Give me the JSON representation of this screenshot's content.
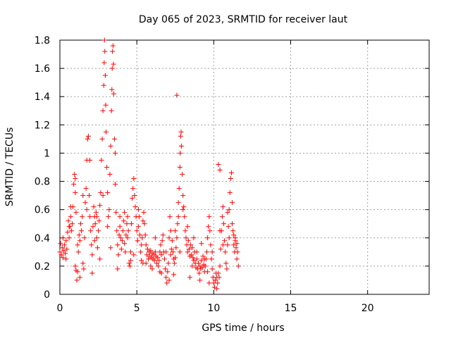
{
  "chart_data": {
    "type": "scatter",
    "title": "Day 065 of 2023, SRMTID for receiver laut",
    "xlabel": "GPS time / hours",
    "ylabel": "SRMTID / TECUs",
    "xlim": [
      0,
      24
    ],
    "ylim": [
      0,
      1.8
    ],
    "xticks": [
      0,
      5,
      10,
      15,
      20
    ],
    "xtick_labels": [
      "0",
      "5",
      "10",
      "15",
      "20"
    ],
    "yticks": [
      0,
      0.2,
      0.4,
      0.6,
      0.8,
      1.0,
      1.2,
      1.4,
      1.6,
      1.8
    ],
    "ytick_labels": [
      "0",
      "0.2",
      "0.4",
      "0.6",
      "0.8",
      "1",
      "1.2",
      "1.4",
      "1.6",
      "1.8"
    ],
    "grid": true,
    "marker": "plus",
    "color": "#ff0000",
    "series": [
      {
        "name": "laut",
        "points": [
          [
            0.0,
            0.3
          ],
          [
            0.05,
            0.36
          ],
          [
            0.1,
            0.28
          ],
          [
            0.15,
            0.33
          ],
          [
            0.2,
            0.26
          ],
          [
            0.25,
            0.31
          ],
          [
            0.3,
            0.35
          ],
          [
            0.35,
            0.29
          ],
          [
            0.4,
            0.38
          ],
          [
            0.45,
            0.32
          ],
          [
            0.5,
            0.44
          ],
          [
            0.55,
            0.52
          ],
          [
            0.6,
            0.4
          ],
          [
            0.65,
            0.48
          ],
          [
            0.7,
            0.55
          ],
          [
            0.75,
            0.45
          ],
          [
            0.8,
            0.5
          ],
          [
            0.85,
            0.62
          ],
          [
            0.9,
            0.78
          ],
          [
            0.95,
            0.85
          ],
          [
            1.0,
            0.72
          ],
          [
            1.05,
            0.58
          ],
          [
            1.0,
            0.2
          ],
          [
            1.05,
            0.17
          ],
          [
            1.1,
            0.1
          ],
          [
            1.15,
            0.16
          ],
          [
            1.2,
            0.3
          ],
          [
            1.25,
            0.42
          ],
          [
            1.3,
            0.38
          ],
          [
            1.35,
            0.5
          ],
          [
            1.4,
            0.45
          ],
          [
            1.45,
            0.55
          ],
          [
            1.5,
            0.22
          ],
          [
            1.55,
            0.18
          ],
          [
            1.6,
            0.4
          ],
          [
            1.65,
            0.65
          ],
          [
            1.7,
            0.75
          ],
          [
            1.75,
            0.95
          ],
          [
            1.8,
            1.1
          ],
          [
            1.85,
            1.12
          ],
          [
            1.9,
            0.7
          ],
          [
            1.95,
            0.55
          ],
          [
            2.0,
            0.45
          ],
          [
            2.05,
            0.35
          ],
          [
            2.1,
            0.28
          ],
          [
            2.15,
            0.48
          ],
          [
            2.2,
            0.62
          ],
          [
            2.25,
            0.55
          ],
          [
            2.3,
            0.5
          ],
          [
            2.35,
            0.58
          ],
          [
            2.4,
            0.4
          ],
          [
            2.45,
            0.33
          ],
          [
            2.5,
            0.45
          ],
          [
            2.55,
            0.52
          ],
          [
            2.6,
            0.63
          ],
          [
            2.65,
            0.72
          ],
          [
            2.7,
            0.95
          ],
          [
            2.75,
            1.1
          ],
          [
            2.8,
            1.3
          ],
          [
            2.85,
            1.48
          ],
          [
            2.88,
            1.64
          ],
          [
            2.9,
            1.8
          ],
          [
            2.92,
            1.72
          ],
          [
            2.95,
            1.55
          ],
          [
            2.98,
            1.34
          ],
          [
            3.0,
            1.15
          ],
          [
            3.05,
            0.9
          ],
          [
            3.1,
            0.72
          ],
          [
            3.15,
            0.55
          ],
          [
            3.2,
            0.6
          ],
          [
            3.25,
            0.85
          ],
          [
            3.3,
            1.05
          ],
          [
            3.35,
            1.3
          ],
          [
            3.38,
            1.45
          ],
          [
            3.4,
            1.6
          ],
          [
            3.42,
            1.72
          ],
          [
            3.45,
            1.76
          ],
          [
            3.48,
            1.63
          ],
          [
            3.5,
            1.42
          ],
          [
            3.55,
            1.1
          ],
          [
            3.6,
            0.78
          ],
          [
            3.65,
            0.58
          ],
          [
            3.7,
            0.45
          ],
          [
            3.75,
            0.35
          ],
          [
            3.8,
            0.28
          ],
          [
            3.85,
            0.42
          ],
          [
            3.9,
            0.48
          ],
          [
            3.95,
            0.4
          ],
          [
            4.0,
            0.32
          ],
          [
            4.05,
            0.38
          ],
          [
            4.1,
            0.45
          ],
          [
            4.15,
            0.52
          ],
          [
            4.2,
            0.36
          ],
          [
            4.25,
            0.3
          ],
          [
            4.3,
            0.42
          ],
          [
            4.35,
            0.5
          ],
          [
            4.4,
            0.55
          ],
          [
            4.45,
            0.45
          ],
          [
            4.5,
            0.22
          ],
          [
            4.55,
            0.2
          ],
          [
            4.6,
            0.24
          ],
          [
            4.65,
            0.5
          ],
          [
            4.7,
            0.68
          ],
          [
            4.75,
            0.75
          ],
          [
            4.8,
            0.82
          ],
          [
            4.85,
            0.7
          ],
          [
            4.9,
            0.62
          ],
          [
            4.95,
            0.55
          ],
          [
            5.0,
            0.45
          ],
          [
            5.05,
            0.38
          ],
          [
            5.1,
            0.48
          ],
          [
            5.15,
            0.55
          ],
          [
            5.2,
            0.42
          ],
          [
            5.25,
            0.3
          ],
          [
            5.3,
            0.24
          ],
          [
            5.35,
            0.4
          ],
          [
            5.4,
            0.52
          ],
          [
            5.45,
            0.58
          ],
          [
            5.5,
            0.5
          ],
          [
            5.55,
            0.42
          ],
          [
            5.6,
            0.35
          ],
          [
            5.65,
            0.28
          ],
          [
            5.7,
            0.32
          ],
          [
            5.75,
            0.25
          ],
          [
            5.8,
            0.3
          ],
          [
            5.85,
            0.27
          ],
          [
            5.9,
            0.31
          ],
          [
            5.95,
            0.26
          ],
          [
            6.0,
            0.29
          ],
          [
            6.05,
            0.25
          ],
          [
            6.1,
            0.28
          ],
          [
            6.15,
            0.24
          ],
          [
            6.2,
            0.3
          ],
          [
            6.25,
            0.27
          ],
          [
            6.3,
            0.22
          ],
          [
            6.35,
            0.26
          ],
          [
            6.4,
            0.2
          ],
          [
            6.45,
            0.24
          ],
          [
            6.5,
            0.3
          ],
          [
            6.55,
            0.35
          ],
          [
            6.6,
            0.28
          ],
          [
            6.65,
            0.38
          ],
          [
            6.7,
            0.42
          ],
          [
            6.75,
            0.3
          ],
          [
            6.8,
            0.25
          ],
          [
            6.85,
            0.18
          ],
          [
            6.9,
            0.12
          ],
          [
            6.95,
            0.08
          ],
          [
            7.0,
            0.16
          ],
          [
            7.05,
            0.22
          ],
          [
            7.1,
            0.4
          ],
          [
            7.15,
            0.55
          ],
          [
            7.2,
            0.45
          ],
          [
            7.25,
            0.32
          ],
          [
            7.3,
            0.38
          ],
          [
            7.35,
            0.3
          ],
          [
            7.4,
            0.25
          ],
          [
            7.45,
            0.22
          ],
          [
            7.5,
            0.26
          ],
          [
            7.55,
            0.33
          ],
          [
            7.6,
            0.4
          ],
          [
            7.65,
            0.5
          ],
          [
            7.7,
            0.65
          ],
          [
            7.75,
            0.75
          ],
          [
            7.8,
            0.9
          ],
          [
            7.82,
            1.0
          ],
          [
            7.85,
            1.12
          ],
          [
            7.88,
            1.15
          ],
          [
            7.9,
            1.05
          ],
          [
            7.95,
            0.85
          ],
          [
            8.0,
            0.7
          ],
          [
            8.05,
            0.62
          ],
          [
            8.1,
            0.55
          ],
          [
            8.15,
            0.45
          ],
          [
            8.2,
            0.4
          ],
          [
            8.25,
            0.35
          ],
          [
            8.3,
            0.3
          ],
          [
            8.35,
            0.38
          ],
          [
            8.4,
            0.32
          ],
          [
            8.45,
            0.27
          ],
          [
            8.5,
            0.35
          ],
          [
            8.55,
            0.28
          ],
          [
            8.6,
            0.33
          ],
          [
            8.65,
            0.26
          ],
          [
            8.7,
            0.24
          ],
          [
            8.75,
            0.3
          ],
          [
            8.8,
            0.22
          ],
          [
            8.85,
            0.19
          ],
          [
            8.9,
            0.25
          ],
          [
            8.95,
            0.18
          ],
          [
            9.0,
            0.22
          ],
          [
            9.05,
            0.15
          ],
          [
            9.1,
            0.2
          ],
          [
            9.15,
            0.18
          ],
          [
            9.2,
            0.24
          ],
          [
            9.25,
            0.19
          ],
          [
            9.3,
            0.27
          ],
          [
            9.35,
            0.21
          ],
          [
            9.4,
            0.16
          ],
          [
            9.45,
            0.2
          ],
          [
            9.5,
            0.25
          ],
          [
            9.55,
            0.3
          ],
          [
            9.6,
            0.4
          ],
          [
            9.65,
            0.48
          ],
          [
            9.7,
            0.55
          ],
          [
            9.75,
            0.45
          ],
          [
            9.8,
            0.35
          ],
          [
            9.85,
            0.25
          ],
          [
            9.9,
            0.18
          ],
          [
            9.95,
            0.12
          ],
          [
            10.0,
            0.08
          ],
          [
            10.05,
            0.05
          ],
          [
            10.1,
            0.1
          ],
          [
            10.15,
            0.15
          ],
          [
            10.2,
            0.12
          ],
          [
            10.25,
            0.08
          ],
          [
            10.3,
            0.15
          ],
          [
            10.35,
            0.12
          ],
          [
            10.4,
            0.2
          ],
          [
            10.45,
            0.32
          ],
          [
            10.5,
            0.45
          ],
          [
            10.55,
            0.55
          ],
          [
            10.6,
            0.62
          ],
          [
            10.65,
            0.5
          ],
          [
            10.7,
            0.38
          ],
          [
            10.75,
            0.3
          ],
          [
            10.8,
            0.22
          ],
          [
            10.85,
            0.18
          ],
          [
            10.9,
            0.35
          ],
          [
            10.95,
            0.48
          ],
          [
            11.0,
            0.6
          ],
          [
            11.05,
            0.72
          ],
          [
            11.1,
            0.82
          ],
          [
            11.15,
            0.86
          ],
          [
            11.2,
            0.65
          ],
          [
            11.25,
            0.45
          ],
          [
            11.3,
            0.35
          ],
          [
            11.35,
            0.3
          ],
          [
            11.4,
            0.38
          ],
          [
            11.45,
            0.33
          ],
          [
            11.5,
            0.36
          ],
          [
            11.55,
            0.3
          ],
          [
            11.6,
            0.2
          ],
          [
            7.6,
            1.41
          ],
          [
            10.3,
            0.92
          ],
          [
            10.4,
            0.88
          ],
          [
            1.95,
            0.95
          ],
          [
            3.6,
            1.0
          ],
          [
            1.0,
            0.82
          ],
          [
            2.8,
            0.7
          ],
          [
            7.5,
            0.45
          ],
          [
            0.7,
            0.62
          ],
          [
            1.5,
            0.7
          ],
          [
            2.4,
            0.55
          ],
          [
            4.2,
            0.58
          ],
          [
            5.1,
            0.6
          ],
          [
            6.2,
            0.4
          ],
          [
            8.0,
            0.6
          ],
          [
            8.7,
            0.4
          ],
          [
            9.2,
            0.36
          ],
          [
            10.9,
            0.58
          ],
          [
            11.0,
            0.4
          ],
          [
            0.4,
            0.25
          ],
          [
            1.3,
            0.12
          ],
          [
            2.1,
            0.15
          ],
          [
            3.75,
            0.18
          ],
          [
            4.6,
            0.3
          ],
          [
            5.6,
            0.22
          ],
          [
            6.6,
            0.15
          ],
          [
            7.1,
            0.1
          ],
          [
            7.4,
            0.14
          ],
          [
            8.45,
            0.12
          ],
          [
            9.1,
            0.1
          ],
          [
            9.7,
            0.08
          ],
          [
            10.2,
            0.04
          ],
          [
            11.5,
            0.25
          ],
          [
            11.3,
            0.42
          ],
          [
            0.2,
            0.4
          ],
          [
            0.6,
            0.48
          ],
          [
            1.15,
            0.35
          ],
          [
            1.75,
            0.6
          ],
          [
            2.25,
            0.38
          ],
          [
            3.1,
            0.48
          ],
          [
            3.9,
            0.55
          ],
          [
            4.4,
            0.4
          ],
          [
            5.3,
            0.35
          ],
          [
            5.9,
            0.2
          ],
          [
            6.5,
            0.16
          ],
          [
            7.2,
            0.28
          ],
          [
            7.7,
            0.55
          ],
          [
            8.3,
            0.48
          ],
          [
            8.9,
            0.3
          ],
          [
            9.4,
            0.25
          ],
          [
            9.9,
            0.3
          ],
          [
            10.6,
            0.35
          ],
          [
            11.2,
            0.5
          ],
          [
            2.6,
            0.25
          ],
          [
            3.3,
            0.33
          ],
          [
            4.8,
            0.28
          ],
          [
            5.4,
            0.22
          ],
          [
            6.0,
            0.18
          ],
          [
            6.9,
            0.3
          ],
          [
            7.8,
            0.3
          ],
          [
            8.6,
            0.2
          ],
          [
            9.6,
            0.16
          ],
          [
            10.4,
            0.45
          ],
          [
            11.4,
            0.4
          ]
        ]
      }
    ]
  }
}
